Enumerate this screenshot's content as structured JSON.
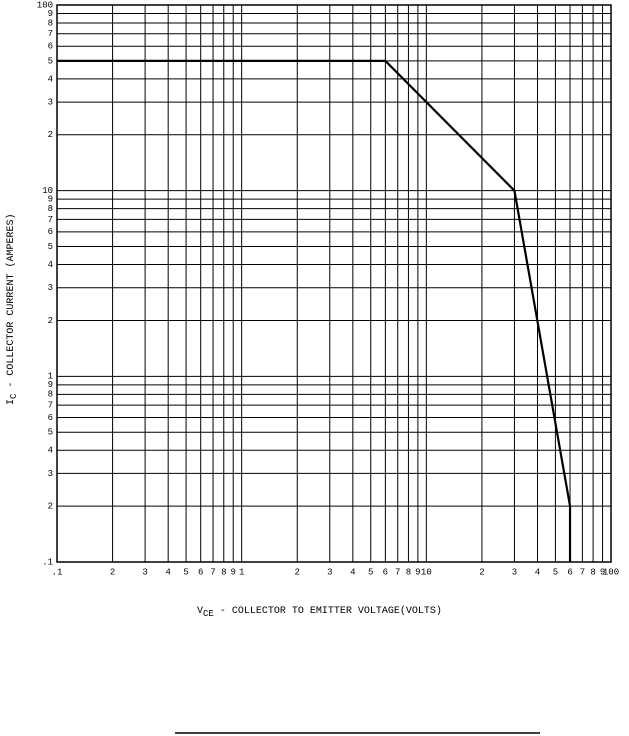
{
  "chart_data": {
    "type": "line",
    "x_label": {
      "symbol": "V",
      "subscript": "CE",
      "text": " - COLLECTOR TO EMITTER VOLTAGE(VOLTS)"
    },
    "y_label": {
      "symbol": "I",
      "subscript": "C",
      "text": " - COLLECTOR CURRENT (AMPERES)"
    },
    "x": [
      0.1,
      6,
      30,
      60,
      60
    ],
    "series": [
      {
        "color": "#000000",
        "values": [
          50,
          50,
          10,
          0.2,
          0.1
        ]
      }
    ],
    "xscale": "log",
    "yscale": "log",
    "grid": true,
    "xlim": [
      0.1,
      100
    ],
    "ylim": [
      0.1,
      100
    ],
    "xticks": [
      {
        "value": 0.1,
        "label": ".1"
      },
      {
        "value": 0.2,
        "label": "2"
      },
      {
        "value": 0.3,
        "label": "3"
      },
      {
        "value": 0.4,
        "label": "4"
      },
      {
        "value": 0.5,
        "label": "5"
      },
      {
        "value": 0.6,
        "label": "6"
      },
      {
        "value": 0.7,
        "label": "7"
      },
      {
        "value": 0.8,
        "label": "8"
      },
      {
        "value": 0.9,
        "label": "9"
      },
      1,
      2,
      3,
      4,
      5,
      6,
      7,
      8,
      9,
      10,
      {
        "value": 20,
        "label": "2"
      },
      {
        "value": 30,
        "label": "3"
      },
      {
        "value": 40,
        "label": "4"
      },
      {
        "value": 50,
        "label": "5"
      },
      {
        "value": 60,
        "label": "6"
      },
      {
        "value": 70,
        "label": "7"
      },
      {
        "value": 80,
        "label": "8"
      },
      {
        "value": 90,
        "label": "9"
      },
      100
    ],
    "yticks": [
      {
        "value": 0.1,
        "label": ".1"
      },
      {
        "value": 0.2,
        "label": "2"
      },
      {
        "value": 0.3,
        "label": "3"
      },
      {
        "value": 0.4,
        "label": "4"
      },
      {
        "value": 0.5,
        "label": "5"
      },
      {
        "value": 0.6,
        "label": "6"
      },
      {
        "value": 0.7,
        "label": "7"
      },
      {
        "value": 0.8,
        "label": "8"
      },
      {
        "value": 0.9,
        "label": "9"
      },
      1,
      2,
      3,
      4,
      5,
      6,
      7,
      8,
      9,
      10,
      {
        "value": 20,
        "label": "2"
      },
      {
        "value": 30,
        "label": "3"
      },
      {
        "value": 40,
        "label": "4"
      },
      {
        "value": 50,
        "label": "5"
      },
      {
        "value": 60,
        "label": "6"
      },
      {
        "value": 70,
        "label": "7"
      },
      {
        "value": 80,
        "label": "8"
      },
      {
        "value": 90,
        "label": "9"
      },
      100
    ]
  }
}
